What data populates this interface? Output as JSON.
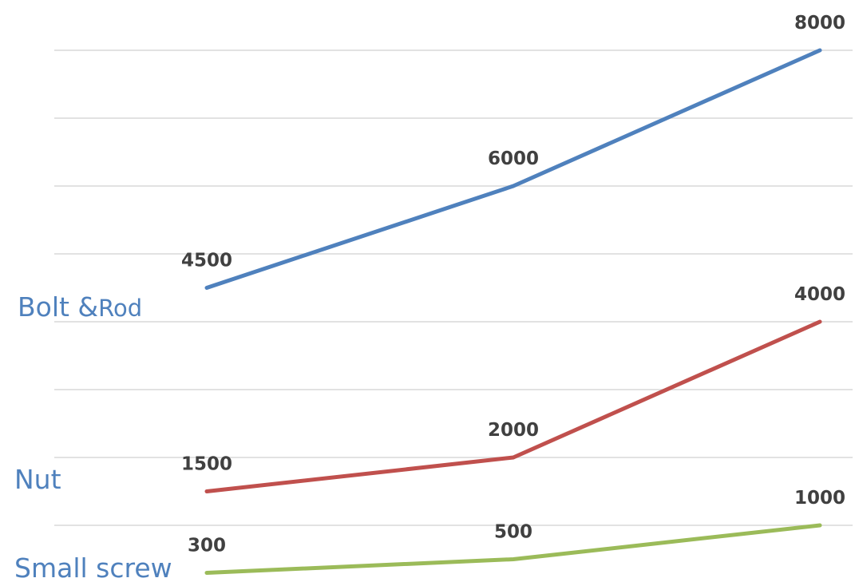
{
  "chart_data": {
    "type": "line",
    "categories": [
      "",
      "",
      ""
    ],
    "ylim": [
      0,
      8000
    ],
    "grid": true,
    "legend": "none",
    "series": [
      {
        "name": "Bolt &Rod",
        "name_prefix": "Bolt &",
        "name_suffix": "Rod",
        "values": [
          4500,
          6000,
          8000
        ],
        "labels": [
          "4500",
          "6000",
          "8000"
        ],
        "color": "#4F81BD"
      },
      {
        "name": "Nut",
        "values": [
          1500,
          2000,
          4000
        ],
        "labels": [
          "1500",
          "2000",
          "4000"
        ],
        "color": "#C0504D"
      },
      {
        "name": "Small screw",
        "values": [
          300,
          500,
          1000
        ],
        "labels": [
          "300",
          "500",
          "1000"
        ],
        "color": "#9BBB59"
      }
    ]
  }
}
